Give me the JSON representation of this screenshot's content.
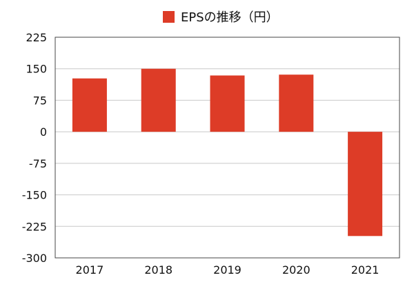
{
  "chart_data": {
    "type": "bar",
    "categories": [
      "2017",
      "2018",
      "2019",
      "2020",
      "2021"
    ],
    "series": [
      {
        "name": "EPSの推移（円）",
        "values": [
          127,
          150,
          134,
          136,
          -248
        ]
      }
    ],
    "ylim": [
      -300,
      225
    ],
    "yticks": [
      225,
      150,
      75,
      0,
      -75,
      -150,
      -225,
      -300
    ],
    "ytick_labels": [
      "225",
      "150",
      "75",
      "0",
      "-75",
      "-150",
      "-225",
      "-300"
    ],
    "grid": true,
    "legend": "top-center",
    "colors": {
      "bar": "#dd3c27",
      "grid": "#c8c8c8",
      "frame": "#444444"
    }
  }
}
